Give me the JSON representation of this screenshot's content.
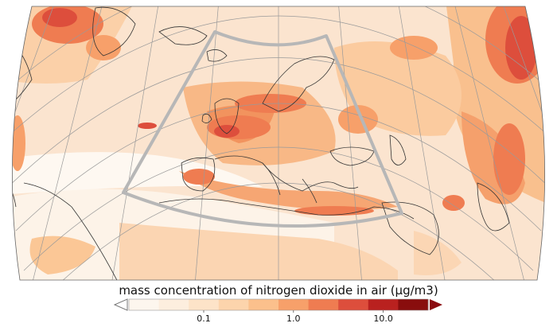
{
  "map": {
    "variable": "mass concentration of nitrogen dioxide in air",
    "domain_box_color": "#b7b7b7",
    "coastline_color": "#333333",
    "graticule_color": "#9a9a9a",
    "background_fill": "#fbe4cf"
  },
  "colorbar": {
    "title": "mass concentration of nitrogen dioxide in air (µg/m3)",
    "colors": [
      "#fdf6ee",
      "#fdeede",
      "#fde3c8",
      "#fcd4ac",
      "#fbc08c",
      "#f7a06a",
      "#ef7c51",
      "#dd4e3c",
      "#b9211f",
      "#890d0d"
    ],
    "under_color": "#ffffff",
    "over_color": "#8b0b10",
    "ticks": [
      {
        "label": "0.1",
        "index": 2
      },
      {
        "label": "1.0",
        "index": 5
      },
      {
        "label": "10.0",
        "index": 8
      }
    ]
  }
}
